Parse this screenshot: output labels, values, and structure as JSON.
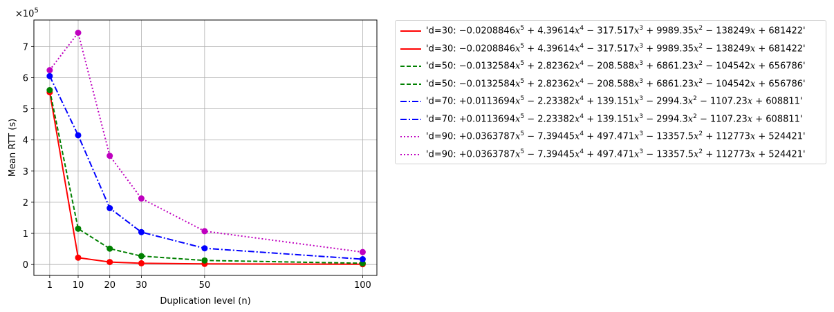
{
  "chart_data": {
    "type": "line",
    "title": "",
    "xlabel": "Duplication level (n)",
    "ylabel": "Mean RTT (s)",
    "y_multiplier": "×10",
    "y_multiplier_exp": "5",
    "x": [
      1,
      10,
      20,
      30,
      50,
      100
    ],
    "x_tick_labels": [
      "1",
      "10",
      "20",
      "30",
      "50",
      "100"
    ],
    "y_ticks": [
      0,
      1,
      2,
      3,
      4,
      5,
      6,
      7
    ],
    "y_tick_labels": [
      "0",
      "1",
      "2",
      "3",
      "4",
      "5",
      "6",
      "7"
    ],
    "xlim": [
      -4.0,
      104.5
    ],
    "ylim": [
      -0.35,
      7.85
    ],
    "grid": true,
    "legend_position": "outside-right",
    "series": [
      {
        "name": "d=30",
        "color": "#ff0000",
        "dash": "solid",
        "values": [
          5.53,
          0.22,
          0.08,
          0.04,
          0.02,
          0.01
        ]
      },
      {
        "name": "d=50",
        "color": "#008000",
        "dash": "dashed",
        "values": [
          5.6,
          1.15,
          0.51,
          0.27,
          0.13,
          0.04
        ]
      },
      {
        "name": "d=70",
        "color": "#0000ff",
        "dash": "dashdot",
        "values": [
          6.05,
          4.15,
          1.81,
          1.04,
          0.52,
          0.17
        ]
      },
      {
        "name": "d=90",
        "color": "#bf00bf",
        "dash": "dotted",
        "values": [
          6.24,
          7.44,
          3.49,
          2.12,
          1.07,
          0.4
        ]
      }
    ],
    "legend_entries": [
      {
        "color": "#ff0000",
        "dash": "solid",
        "prefix": "'d=30: ",
        "c5": "−0.0208846",
        "c4": "+ 4.39614",
        "c3": "− 317.517",
        "c2": "+ 9989.35",
        "c1": "− 138249",
        "c0": "+ 681422'"
      },
      {
        "color": "#ff0000",
        "dash": "solid",
        "prefix": "'d=30: ",
        "c5": "−0.0208846",
        "c4": "+ 4.39614",
        "c3": "− 317.517",
        "c2": "+ 9989.35",
        "c1": "− 138249",
        "c0": "+ 681422'"
      },
      {
        "color": "#008000",
        "dash": "dashed",
        "prefix": "'d=50: ",
        "c5": "−0.0132584",
        "c4": "+ 2.82362",
        "c3": "− 208.588",
        "c2": "+ 6861.23",
        "c1": "− 104542",
        "c0": "+ 656786'"
      },
      {
        "color": "#008000",
        "dash": "dashed",
        "prefix": "'d=50: ",
        "c5": "−0.0132584",
        "c4": "+ 2.82362",
        "c3": "− 208.588",
        "c2": "+ 6861.23",
        "c1": "− 104542",
        "c0": "+ 656786'"
      },
      {
        "color": "#0000ff",
        "dash": "dashdot",
        "prefix": "'d=70: ",
        "c5": "+0.0113694",
        "c4": "− 2.23382",
        "c3": "+ 139.151",
        "c2": "− 2994.3",
        "c1": "− 1107.23",
        "c0": "+ 608811'"
      },
      {
        "color": "#0000ff",
        "dash": "dashdot",
        "prefix": "'d=70: ",
        "c5": "+0.0113694",
        "c4": "− 2.23382",
        "c3": "+ 139.151",
        "c2": "− 2994.3",
        "c1": "− 1107.23",
        "c0": "+ 608811'"
      },
      {
        "color": "#bf00bf",
        "dash": "dotted",
        "prefix": "'d=90: ",
        "c5": "+0.0363787",
        "c4": "− 7.39445",
        "c3": "+ 497.471",
        "c2": "− 13357.5",
        "c1": "+ 112773",
        "c0": "+ 524421'"
      },
      {
        "color": "#bf00bf",
        "dash": "dotted",
        "prefix": "'d=90: ",
        "c5": "+0.0363787",
        "c4": "− 7.39445",
        "c3": "+ 497.471",
        "c2": "− 13357.5",
        "c1": "+ 112773",
        "c0": "+ 524421'"
      }
    ]
  }
}
